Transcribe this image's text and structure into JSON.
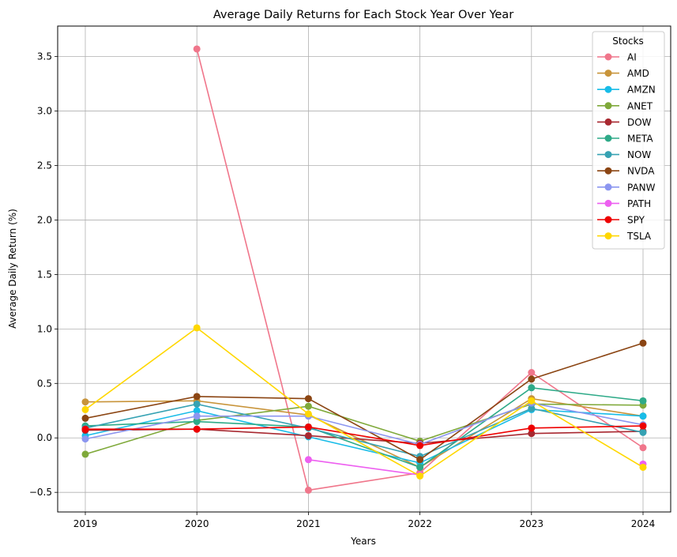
{
  "chart_data": {
    "type": "line",
    "title": "Average Daily Returns for Each Stock Year Over Year",
    "xlabel": "Years",
    "ylabel": "Average Daily Return (%)",
    "x": [
      "2019",
      "2020",
      "2021",
      "2022",
      "2023",
      "2024"
    ],
    "y_ticks": [
      "−0.5",
      "0.0",
      "0.5",
      "1.0",
      "1.5",
      "2.0",
      "2.5",
      "3.0",
      "3.5"
    ],
    "ylim": [
      -0.68,
      3.78
    ],
    "grid": true,
    "legend": {
      "title": "Stocks",
      "position": "top-right"
    },
    "series": [
      {
        "name": "AI",
        "color": "#f0768b",
        "values": [
          null,
          3.57,
          -0.48,
          -0.32,
          0.6,
          -0.09
        ]
      },
      {
        "name": "AMD",
        "color": "#c8943a",
        "values": [
          0.33,
          0.34,
          0.21,
          -0.27,
          0.36,
          0.2
        ]
      },
      {
        "name": "AMZN",
        "color": "#18bce8",
        "values": [
          0.02,
          0.25,
          0.01,
          -0.23,
          0.26,
          0.2
        ]
      },
      {
        "name": "ANET",
        "color": "#7fa93a",
        "values": [
          -0.15,
          0.16,
          0.29,
          -0.03,
          0.31,
          0.3
        ]
      },
      {
        "name": "DOW",
        "color": "#a82830",
        "values": [
          0.07,
          0.08,
          0.02,
          -0.05,
          0.04,
          0.06
        ]
      },
      {
        "name": "META",
        "color": "#2eaa88",
        "values": [
          0.11,
          0.15,
          0.1,
          -0.27,
          0.46,
          0.34
        ]
      },
      {
        "name": "NOW",
        "color": "#36a2b3",
        "values": [
          0.09,
          0.31,
          0.09,
          -0.17,
          0.27,
          0.05
        ]
      },
      {
        "name": "NVDA",
        "color": "#8b4513",
        "values": [
          0.18,
          0.38,
          0.36,
          -0.2,
          0.54,
          0.87
        ]
      },
      {
        "name": "PANW",
        "color": "#8c96f0",
        "values": [
          -0.01,
          0.2,
          0.2,
          -0.06,
          0.32,
          0.12
        ]
      },
      {
        "name": "PATH",
        "color": "#ed5ff0",
        "values": [
          null,
          null,
          -0.2,
          -0.34,
          null,
          -0.24
        ]
      },
      {
        "name": "SPY",
        "color": "#ee0000",
        "values": [
          0.08,
          0.08,
          0.1,
          -0.07,
          0.09,
          0.11
        ]
      },
      {
        "name": "TSLA",
        "color": "#ffd700",
        "values": [
          0.26,
          1.01,
          0.22,
          -0.35,
          0.34,
          -0.27
        ]
      }
    ]
  }
}
